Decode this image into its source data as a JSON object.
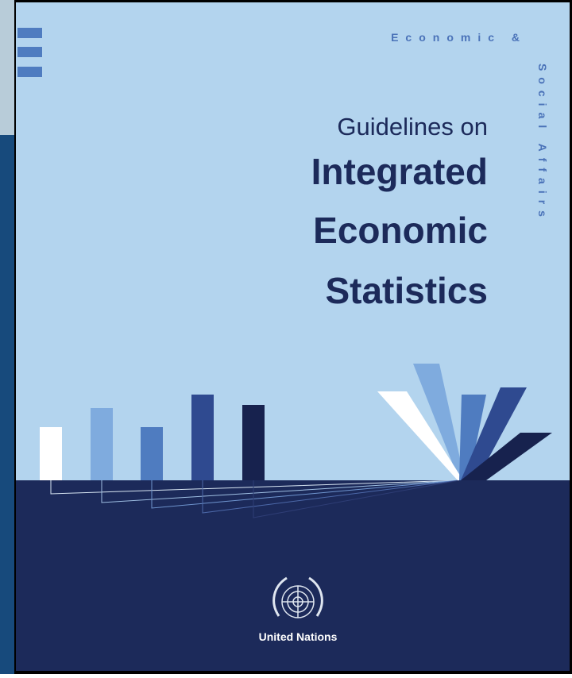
{
  "header": {
    "series_top": "Economic &",
    "series_side": "Social Affairs"
  },
  "title": {
    "line1": "Guidelines on",
    "line2": "Integrated",
    "line3": "Economic",
    "line4": "Statistics"
  },
  "publisher": "United Nations"
}
